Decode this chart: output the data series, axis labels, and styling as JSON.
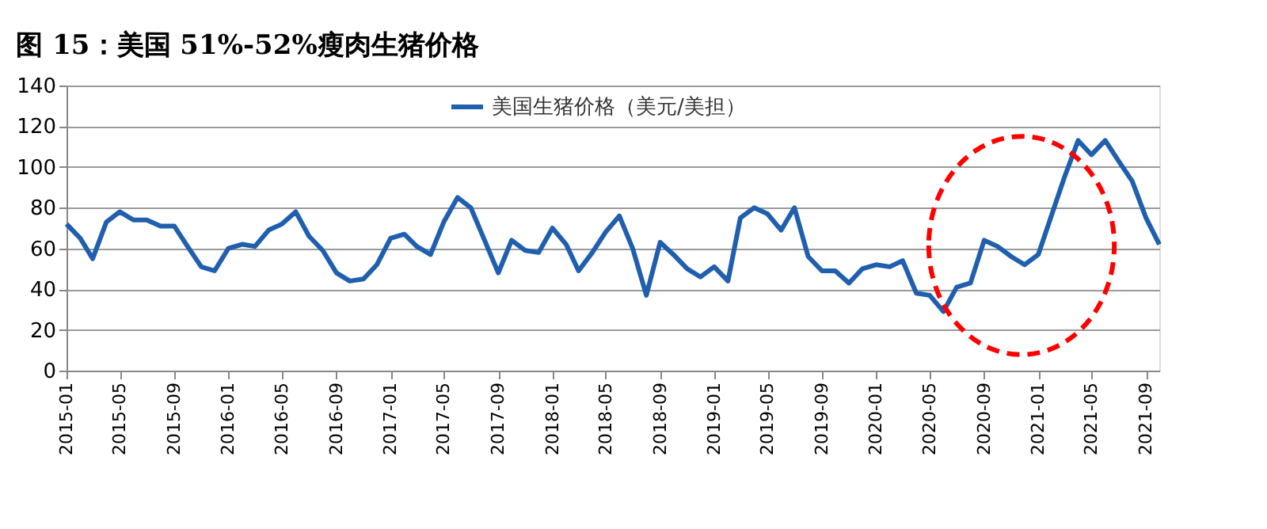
{
  "chart_data": {
    "type": "line",
    "title": "图 15：美国 51%-52%瘦肉生猪价格",
    "x": [
      "2015-01",
      "2015-02",
      "2015-03",
      "2015-04",
      "2015-05",
      "2015-06",
      "2015-07",
      "2015-08",
      "2015-09",
      "2015-10",
      "2015-11",
      "2015-12",
      "2016-01",
      "2016-02",
      "2016-03",
      "2016-04",
      "2016-05",
      "2016-06",
      "2016-07",
      "2016-08",
      "2016-09",
      "2016-10",
      "2016-11",
      "2016-12",
      "2017-01",
      "2017-02",
      "2017-03",
      "2017-04",
      "2017-05",
      "2017-06",
      "2017-07",
      "2017-08",
      "2017-09",
      "2017-10",
      "2017-11",
      "2017-12",
      "2018-01",
      "2018-02",
      "2018-03",
      "2018-04",
      "2018-05",
      "2018-06",
      "2018-07",
      "2018-08",
      "2018-09",
      "2018-10",
      "2018-11",
      "2018-12",
      "2019-01",
      "2019-02",
      "2019-03",
      "2019-04",
      "2019-05",
      "2019-06",
      "2019-07",
      "2019-08",
      "2019-09",
      "2019-10",
      "2019-11",
      "2019-12",
      "2020-01",
      "2020-02",
      "2020-03",
      "2020-04",
      "2020-05",
      "2020-06",
      "2020-07",
      "2020-08",
      "2020-09",
      "2020-10",
      "2020-11",
      "2020-12",
      "2021-01",
      "2021-02",
      "2021-03",
      "2021-04",
      "2021-05",
      "2021-06",
      "2021-07",
      "2021-08",
      "2021-09",
      "2021-10"
    ],
    "series": [
      {
        "name": "美国生猪价格（美元/美担）",
        "color": "#1f5fae",
        "values": [
          72,
          65,
          55,
          73,
          78,
          74,
          74,
          71,
          71,
          61,
          51,
          49,
          60,
          62,
          61,
          69,
          72,
          78,
          66,
          59,
          48,
          44,
          45,
          52,
          65,
          67,
          61,
          57,
          73,
          85,
          80,
          64,
          48,
          64,
          59,
          58,
          70,
          62,
          49,
          58,
          68,
          76,
          60,
          37,
          63,
          57,
          50,
          46,
          51,
          44,
          75,
          80,
          77,
          69,
          80,
          56,
          49,
          49,
          43,
          50,
          52,
          51,
          54,
          38,
          37,
          29,
          41,
          43,
          64,
          61,
          56,
          52,
          57,
          77,
          95,
          113,
          106,
          113,
          103,
          93,
          75,
          62
        ]
      }
    ],
    "xlim": [
      "2015-01",
      "2021-10"
    ],
    "xticks": [
      {
        "value": "2015-01",
        "label": "2015-01"
      },
      {
        "value": "2015-05",
        "label": "2015-05"
      },
      {
        "value": "2015-09",
        "label": "2015-09"
      },
      {
        "value": "2016-01",
        "label": "2016-01"
      },
      {
        "value": "2016-05",
        "label": "2016-05"
      },
      {
        "value": "2016-09",
        "label": "2016-09"
      },
      {
        "value": "2017-01",
        "label": "2017-01"
      },
      {
        "value": "2017-05",
        "label": "2017-05"
      },
      {
        "value": "2017-09",
        "label": "2017-09"
      },
      {
        "value": "2018-01",
        "label": "2018-01"
      },
      {
        "value": "2018-05",
        "label": "2018-05"
      },
      {
        "value": "2018-09",
        "label": "2018-09"
      },
      {
        "value": "2019-01",
        "label": "2019-01"
      },
      {
        "value": "2019-05",
        "label": "2019-05"
      },
      {
        "value": "2019-09",
        "label": "2019-09"
      },
      {
        "value": "2020-01",
        "label": "2020-01"
      },
      {
        "value": "2020-05",
        "label": "2020-05"
      },
      {
        "value": "2020-09",
        "label": "2020-09"
      },
      {
        "value": "2021-01",
        "label": "2021-01"
      },
      {
        "value": "2021-05",
        "label": "2021-05"
      },
      {
        "value": "2021-09",
        "label": "2021-09"
      }
    ],
    "ylim": [
      0,
      140
    ],
    "yticks": [
      0,
      20,
      40,
      60,
      80,
      100,
      120,
      140
    ],
    "grid": "y",
    "legend": "top",
    "marker": "none",
    "line_style": "solid"
  }
}
